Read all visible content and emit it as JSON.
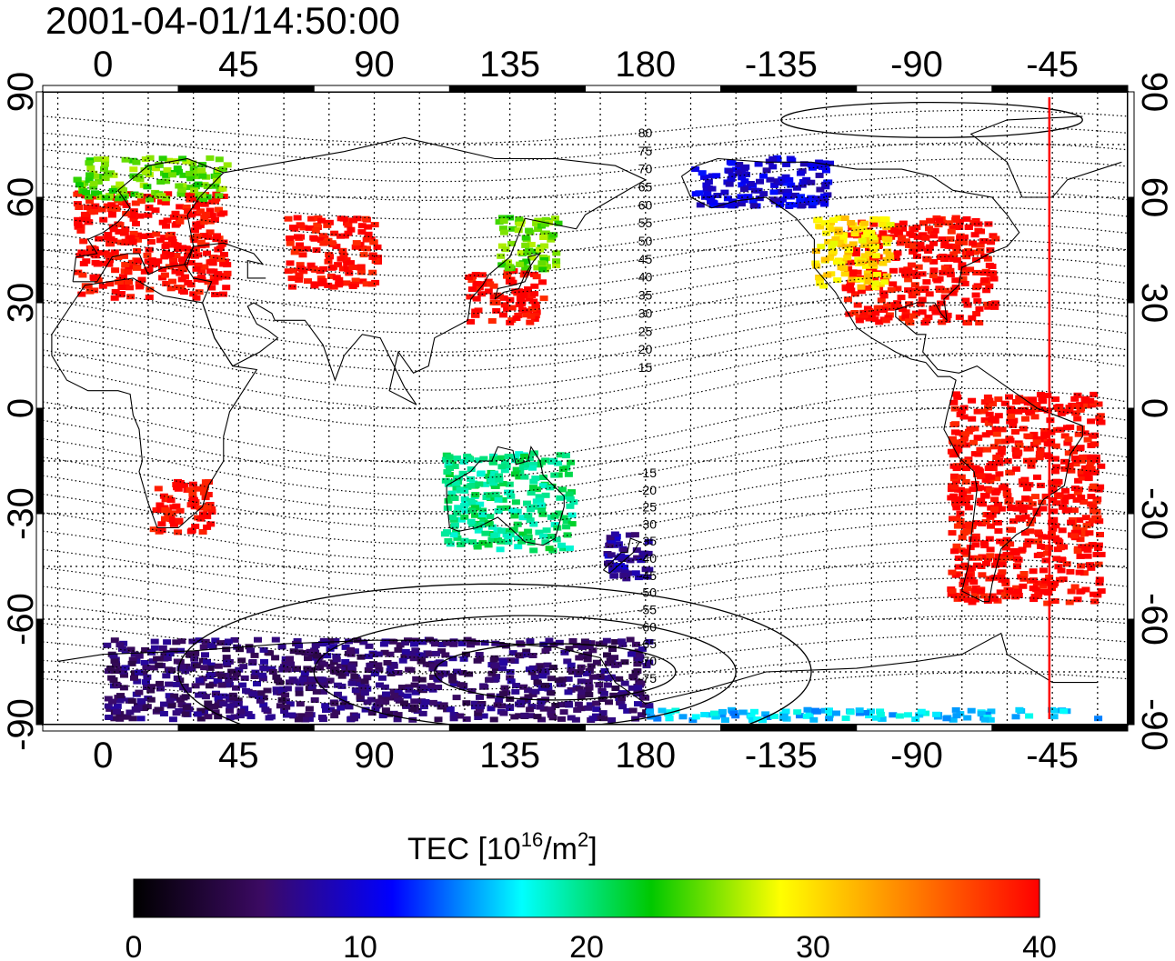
{
  "title": "2001-04-01/14:50:00",
  "colors": {
    "land_outline": "#000000",
    "grid": "#000000",
    "terminator": "#ff0000",
    "colormap": [
      "#000000",
      "#3c0a64",
      "#0000ff",
      "#00ffff",
      "#00c800",
      "#ffff00",
      "#ff8000",
      "#ff0000"
    ]
  },
  "map": {
    "projection": "equirectangular",
    "lon_center": 180,
    "lon_ticks_top": [
      "0",
      "45",
      "90",
      "135",
      "180",
      "-135",
      "-90",
      "-45"
    ],
    "lon_ticks_bottom": [
      "0",
      "45",
      "90",
      "135",
      "180",
      "-135",
      "-90",
      "-45"
    ],
    "lat_ticks_left": [
      "90",
      "60",
      "30",
      "0",
      "-30",
      "-60",
      "-90"
    ],
    "lat_ticks_right": [
      "90",
      "60",
      "30",
      "0",
      "-30",
      "-60",
      "-90"
    ],
    "grid": "dotted, every 15 degrees",
    "magnetic_latitude_labels": [
      "80",
      "75",
      "70",
      "65",
      "60",
      "55",
      "50",
      "45",
      "40",
      "35",
      "30",
      "25",
      "20",
      "15",
      "-15",
      "-20",
      "-25",
      "-30",
      "-35",
      "-40",
      "-45",
      "-50",
      "-55",
      "-60",
      "-65",
      "-70",
      "-75"
    ],
    "terminator_lon": -46
  },
  "chart_data": {
    "type": "heatmap",
    "title": "2001-04-01/14:50:00",
    "variable": "TEC",
    "clim": [
      0,
      40
    ],
    "xlim": [
      -20,
      340
    ],
    "ylim": [
      -90,
      90
    ],
    "regions": [
      {
        "area": "Europe",
        "lon": [
          -10,
          40
        ],
        "lat": [
          32,
          62
        ],
        "tec": 40
      },
      {
        "area": "Scandinavia",
        "lon": [
          -10,
          40
        ],
        "lat": [
          60,
          72
        ],
        "tec": 25
      },
      {
        "area": "Central Asia",
        "lon": [
          60,
          90
        ],
        "lat": [
          35,
          55
        ],
        "tec": 40
      },
      {
        "area": "Japan",
        "lon": [
          120,
          145
        ],
        "lat": [
          25,
          40
        ],
        "tec": 40
      },
      {
        "area": "Northeast Asia",
        "lon": [
          130,
          150
        ],
        "lat": [
          40,
          55
        ],
        "tec": 25
      },
      {
        "area": "Alaska",
        "lon": [
          195,
          240
        ],
        "lat": [
          58,
          72
        ],
        "tec": 10
      },
      {
        "area": "North America",
        "lon": [
          245,
          295
        ],
        "lat": [
          25,
          55
        ],
        "tec": 40
      },
      {
        "area": "Western North America",
        "lon": [
          235,
          260
        ],
        "lat": [
          35,
          55
        ],
        "tec": 30
      },
      {
        "area": "South America",
        "lon": [
          280,
          330
        ],
        "lat": [
          -55,
          5
        ],
        "tec": 40
      },
      {
        "area": "South Africa",
        "lon": [
          15,
          35
        ],
        "lat": [
          -35,
          -20
        ],
        "tec": 40
      },
      {
        "area": "Australia",
        "lon": [
          112,
          155
        ],
        "lat": [
          -40,
          -12
        ],
        "tec": 20
      },
      {
        "area": "New Zealand",
        "lon": [
          165,
          180
        ],
        "lat": [
          -48,
          -35
        ],
        "tec": 8
      },
      {
        "area": "Antarctica",
        "lon": [
          0,
          180
        ],
        "lat": [
          -88,
          -65
        ],
        "tec": 6
      },
      {
        "area": "Antarctic coast",
        "lon": [
          180,
          330
        ],
        "lat": [
          -88,
          -85
        ],
        "tec": 16
      }
    ]
  },
  "colorbar": {
    "title_main": "TEC  [10",
    "title_exp1": "16",
    "title_mid": "/m",
    "title_exp2": "2",
    "title_end": "]",
    "ticks": [
      "0",
      "10",
      "20",
      "30",
      "40"
    ]
  }
}
